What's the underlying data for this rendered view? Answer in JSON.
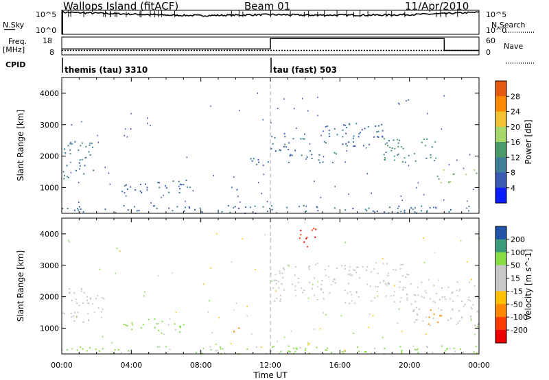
{
  "header": {
    "title": "Wallops Island (fitACF)",
    "beam": "Beam 01",
    "date": "11/Apr/2010"
  },
  "strip_labels": {
    "nsky": "N.Sky",
    "nsearch": "N.Search",
    "freq": "Freq.",
    "freq_unit": "[MHz]",
    "nave": "Nave",
    "cpid": "CPID"
  },
  "strip_ticks": {
    "noise_top": "10^5",
    "noise_bottom": "10^0",
    "freq_top": "18",
    "freq_bottom": "8",
    "nave_top": "60",
    "nave_bottom": "0"
  },
  "cpid_segments": [
    {
      "start_hour": 0,
      "end_hour": 12,
      "label": "themis (tau) 3310"
    },
    {
      "start_hour": 12,
      "end_hour": 24,
      "label": "tau (fast) 503"
    }
  ],
  "colors": {
    "power_scale": [
      "#0a1dff",
      "#3a5bb4",
      "#3f7f9a",
      "#4a9a6a",
      "#a8d86a",
      "#f2c230",
      "#ff8a00",
      "#e85a10",
      "#ff0000"
    ],
    "velocity_scale": [
      "#ee0000",
      "#ff3a00",
      "#ff8800",
      "#ffc000",
      "#c8c8c8",
      "#c8c8c8",
      "#88dd44",
      "#3a9a7a",
      "#2255aa",
      "#1a1a9e"
    ],
    "echo_gray": "#c8c8c8",
    "ground_scatter_gray": "#c8c8c8"
  },
  "chart_data": [
    {
      "type": "line",
      "name": "noise",
      "series": [
        {
          "name": "N.Sky",
          "x": [
            0,
            2,
            4,
            6,
            8,
            10,
            12,
            14,
            16,
            18,
            20,
            22,
            24
          ],
          "y_log10": [
            4.6,
            4.4,
            4.2,
            4.0,
            3.9,
            4.0,
            4.1,
            4.0,
            4.0,
            4.0,
            4.1,
            4.3,
            4.6
          ]
        }
      ],
      "xlim": [
        0,
        24
      ],
      "ylim": [
        "10^0",
        "10^5"
      ],
      "scale": "log"
    },
    {
      "type": "line",
      "name": "frequency and nave",
      "series": [
        {
          "name": "Freq.",
          "x": [
            0,
            24
          ],
          "y": [
            10.5,
            10.5
          ]
        },
        {
          "name": "Nave",
          "x": [
            0,
            12,
            12,
            22,
            22,
            24
          ],
          "y": [
            20,
            20,
            55,
            55,
            15,
            15
          ]
        }
      ],
      "xlim": [
        0,
        24
      ],
      "ylim_freq": [
        8,
        18
      ],
      "ylim_nave": [
        0,
        60
      ]
    },
    {
      "type": "heatmap",
      "quantity": "Power",
      "xlabel": "",
      "ylabel": "Slant Range [km]",
      "xlim": [
        0,
        24
      ],
      "ylim": [
        180,
        4500
      ],
      "yticks": [
        1000,
        2000,
        3000,
        4000
      ],
      "colorbar_label": "Power [dB]",
      "colorbar_ticks": [
        4,
        8,
        12,
        16,
        20,
        24,
        28
      ],
      "colorbar_range": [
        0,
        32
      ],
      "regions": [
        {
          "x0": 0.0,
          "x1": 1.8,
          "y0": 1300,
          "y1": 2600,
          "level": 8
        },
        {
          "x0": 3.4,
          "x1": 7.4,
          "y0": 850,
          "y1": 1250,
          "level": 6
        },
        {
          "x0": 9.5,
          "x1": 10.5,
          "y0": 850,
          "y1": 1100,
          "level": 6
        },
        {
          "x0": 10.5,
          "x1": 11.9,
          "y0": 1600,
          "y1": 1950,
          "level": 6
        },
        {
          "x0": 12.0,
          "x1": 14.0,
          "y0": 2100,
          "y1": 2800,
          "level": 6
        },
        {
          "x0": 13.0,
          "x1": 16.0,
          "y0": 1800,
          "y1": 2200,
          "level": 7
        },
        {
          "x0": 15.0,
          "x1": 18.5,
          "y0": 2300,
          "y1": 3100,
          "level": 6
        },
        {
          "x0": 18.5,
          "x1": 21.5,
          "y0": 1800,
          "y1": 2600,
          "level": 10
        },
        {
          "x0": 21.5,
          "x1": 24.0,
          "y0": 1100,
          "y1": 1600,
          "level": 14
        },
        {
          "x0": 0.0,
          "x1": 24.0,
          "y0": 200,
          "y1": 450,
          "level": 7
        }
      ]
    },
    {
      "type": "heatmap",
      "quantity": "Velocity",
      "xlabel": "Time UT",
      "ylabel": "Slant Range [km]",
      "xlim": [
        0,
        24
      ],
      "ylim": [
        180,
        4500
      ],
      "yticks": [
        1000,
        2000,
        3000,
        4000
      ],
      "xticks": [
        "00:00",
        "04:00",
        "08:00",
        "12:00",
        "16:00",
        "20:00",
        "00:00"
      ],
      "colorbar_label": "Velocity [m s^-1]",
      "colorbar_ticks": [
        -200,
        -100,
        -50,
        -15,
        15,
        50,
        100,
        200
      ],
      "regions": [
        {
          "x0": 0.0,
          "x1": 2.4,
          "y0": 1200,
          "y1": 2300,
          "velocity": 0
        },
        {
          "x0": 3.4,
          "x1": 7.4,
          "y0": 850,
          "y1": 1350,
          "velocity": 20
        },
        {
          "x0": 9.7,
          "x1": 10.3,
          "y0": 900,
          "y1": 1100,
          "velocity": -60
        },
        {
          "x0": 12.0,
          "x1": 20.0,
          "y0": 1800,
          "y1": 3100,
          "velocity": 0
        },
        {
          "x0": 13.0,
          "x1": 14.6,
          "y0": 3600,
          "y1": 4200,
          "velocity": -200
        },
        {
          "x0": 20.0,
          "x1": 24.0,
          "y0": 1100,
          "y1": 2500,
          "velocity": 0
        },
        {
          "x0": 21.0,
          "x1": 22.0,
          "y0": 1100,
          "y1": 1600,
          "velocity": -60
        },
        {
          "x0": 0.0,
          "x1": 24.0,
          "y0": 200,
          "y1": 450,
          "velocity": 20
        }
      ]
    }
  ]
}
